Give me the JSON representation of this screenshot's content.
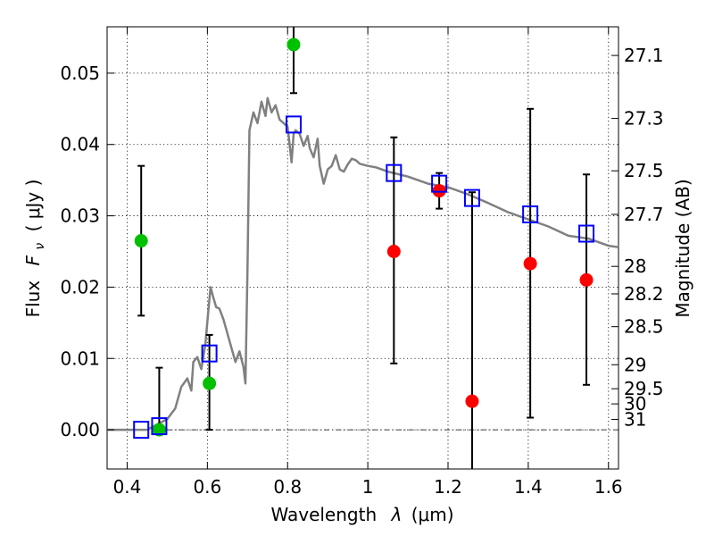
{
  "chart_data": {
    "type": "scatter",
    "title": "",
    "xlabel_text": "Wavelength",
    "xlabel_symbol": "λ",
    "xlabel_unit": "(μm)",
    "ylabel_text": "Flux",
    "ylabel_symbol": "F",
    "ylabel_subscript": "ν",
    "ylabel_unit": "( μJy )",
    "y2label": "Magnitude (AB)",
    "xlim": [
      0.35,
      1.625
    ],
    "ylim": [
      -0.0055,
      0.0565
    ],
    "grid": true,
    "x_ticks": [
      0.4,
      0.6,
      0.8,
      1.0,
      1.2,
      1.4,
      1.6
    ],
    "x_tick_labels": [
      "0.4",
      "0.6",
      "0.8",
      "1",
      "1.2",
      "1.4",
      "1.6"
    ],
    "y_ticks": [
      0.0,
      0.01,
      0.02,
      0.03,
      0.04,
      0.05
    ],
    "y_tick_labels": [
      "0.00",
      "0.01",
      "0.02",
      "0.03",
      "0.04",
      "0.05"
    ],
    "mag_ticks": [
      27.1,
      27.3,
      27.5,
      27.7,
      28,
      28.2,
      28.5,
      29,
      29.5,
      30,
      31
    ],
    "mag_tick_labels": [
      "27.1",
      "27.3",
      "27.5",
      "27.7",
      "28",
      "28.2",
      "28.5",
      "29",
      "29.5",
      "30",
      "31"
    ],
    "colors": {
      "green": "#00c000",
      "red": "#ff0000",
      "model_box": "#0000ff",
      "template": "#808080",
      "errorbar": "#000000"
    },
    "series": [
      {
        "name": "template_sed",
        "type": "line",
        "x": [
          0.35,
          0.45,
          0.5,
          0.52,
          0.535,
          0.55,
          0.56,
          0.565,
          0.575,
          0.585,
          0.595,
          0.602,
          0.608,
          0.615,
          0.622,
          0.63,
          0.64,
          0.65,
          0.66,
          0.67,
          0.68,
          0.69,
          0.695,
          0.7,
          0.705,
          0.715,
          0.725,
          0.735,
          0.745,
          0.75,
          0.76,
          0.77,
          0.78,
          0.79,
          0.8,
          0.805,
          0.81,
          0.815,
          0.82,
          0.83,
          0.84,
          0.85,
          0.855,
          0.865,
          0.875,
          0.88,
          0.89,
          0.9,
          0.91,
          0.92,
          0.93,
          0.94,
          0.95,
          0.96,
          0.97,
          0.98,
          1.0,
          1.02,
          1.05,
          1.1,
          1.15,
          1.2,
          1.25,
          1.3,
          1.35,
          1.4,
          1.45,
          1.5,
          1.55,
          1.6,
          1.625
        ],
        "y": [
          0.0,
          0.0,
          0.0015,
          0.003,
          0.006,
          0.0072,
          0.0055,
          0.0095,
          0.0102,
          0.0085,
          0.012,
          0.0165,
          0.02,
          0.0185,
          0.0172,
          0.017,
          0.0155,
          0.0135,
          0.0115,
          0.0095,
          0.011,
          0.0088,
          0.0065,
          0.0225,
          0.042,
          0.0445,
          0.043,
          0.046,
          0.044,
          0.0465,
          0.0445,
          0.0455,
          0.0435,
          0.043,
          0.0425,
          0.04,
          0.0375,
          0.0415,
          0.042,
          0.0415,
          0.0398,
          0.0412,
          0.0395,
          0.0382,
          0.0408,
          0.037,
          0.0345,
          0.0365,
          0.037,
          0.0385,
          0.0365,
          0.0362,
          0.0372,
          0.038,
          0.0378,
          0.0373,
          0.037,
          0.0368,
          0.0362,
          0.0355,
          0.0345,
          0.034,
          0.033,
          0.0318,
          0.0305,
          0.0295,
          0.0285,
          0.0272,
          0.0268,
          0.0258,
          0.0256
        ]
      },
      {
        "name": "green_detections",
        "type": "scatter",
        "x": [
          0.435,
          0.48,
          0.605,
          0.815
        ],
        "y": [
          0.0265,
          0.0,
          0.0065,
          0.054
        ],
        "err_low": [
          0.016,
          0.0,
          0.0,
          0.0472
        ],
        "err_high": [
          0.037,
          0.0087,
          0.0133,
          0.0565
        ]
      },
      {
        "name": "red_detections",
        "type": "scatter",
        "x": [
          1.065,
          1.178,
          1.26,
          1.405,
          1.545
        ],
        "y": [
          0.025,
          0.0335,
          0.004,
          0.0233,
          0.021
        ],
        "err_low": [
          0.0093,
          0.031,
          -0.0055,
          0.0017,
          0.0063
        ],
        "err_high": [
          0.041,
          0.036,
          0.0333,
          0.045,
          0.0358
        ]
      },
      {
        "name": "model_photometry",
        "type": "scatter",
        "x": [
          0.435,
          0.48,
          0.605,
          0.815,
          1.065,
          1.178,
          1.26,
          1.405,
          1.545
        ],
        "y": [
          0.0,
          0.0005,
          0.0107,
          0.0428,
          0.036,
          0.0345,
          0.0325,
          0.0302,
          0.0275
        ]
      }
    ]
  }
}
